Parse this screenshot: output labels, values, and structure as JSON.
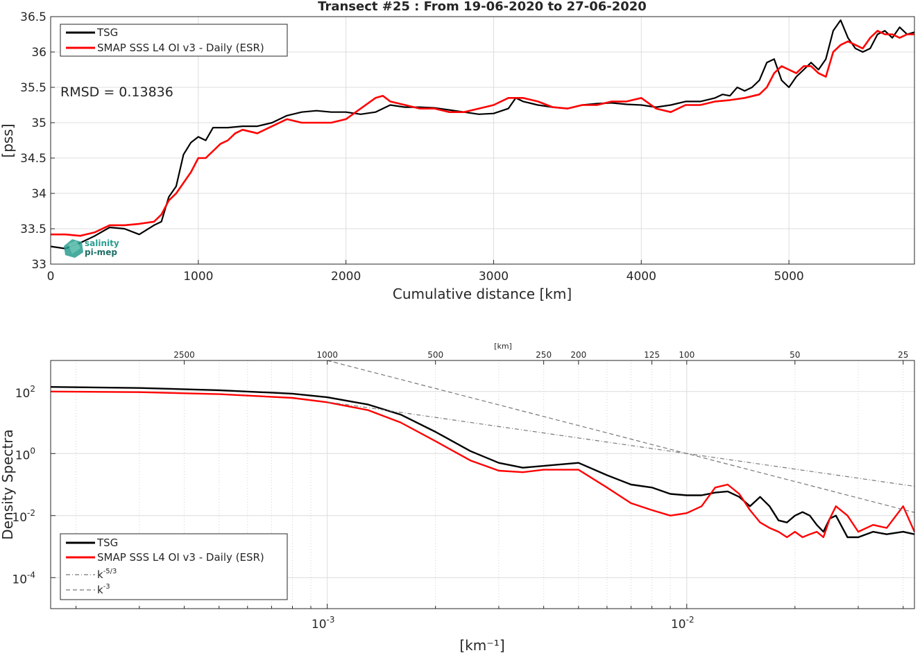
{
  "chart_data": [
    {
      "type": "line",
      "title": "Transect #25 : From 19-06-2020 to 27-06-2020",
      "xlabel": "Cumulative distance [km]",
      "ylabel": "[pss]",
      "xlim": [
        0,
        5850
      ],
      "ylim": [
        33,
        36.5
      ],
      "x_ticks": [
        "0",
        "1000",
        "2000",
        "3000",
        "4000",
        "5000"
      ],
      "y_ticks": [
        "33",
        "33.5",
        "34",
        "34.5",
        "35",
        "35.5",
        "36",
        "36.5"
      ],
      "grid": true,
      "legend_position": "top-left",
      "annotation": "RMSD = 0.13836",
      "logo_text": [
        "salinity",
        "pi-mep"
      ],
      "series": [
        {
          "name": "TSG",
          "color": "#000000",
          "x": [
            0,
            100,
            200,
            300,
            400,
            500,
            600,
            700,
            750,
            800,
            850,
            900,
            950,
            1000,
            1050,
            1100,
            1200,
            1300,
            1400,
            1500,
            1600,
            1700,
            1800,
            1900,
            2000,
            2100,
            2200,
            2300,
            2400,
            2500,
            2600,
            2700,
            2800,
            2900,
            3000,
            3100,
            3150,
            3200,
            3300,
            3400,
            3500,
            3600,
            3700,
            3800,
            3900,
            4000,
            4100,
            4200,
            4300,
            4400,
            4500,
            4550,
            4600,
            4650,
            4700,
            4750,
            4800,
            4850,
            4900,
            4950,
            5000,
            5050,
            5100,
            5150,
            5200,
            5250,
            5300,
            5350,
            5400,
            5450,
            5500,
            5550,
            5600,
            5650,
            5700,
            5750,
            5800,
            5850
          ],
          "y": [
            33.25,
            33.22,
            33.3,
            33.4,
            33.52,
            33.5,
            33.42,
            33.55,
            33.6,
            33.95,
            34.1,
            34.55,
            34.72,
            34.8,
            34.75,
            34.93,
            34.93,
            34.95,
            34.95,
            35.0,
            35.1,
            35.15,
            35.17,
            35.15,
            35.15,
            35.12,
            35.15,
            35.25,
            35.22,
            35.22,
            35.21,
            35.18,
            35.15,
            35.12,
            35.13,
            35.2,
            35.35,
            35.3,
            35.25,
            35.22,
            35.2,
            35.25,
            35.27,
            35.28,
            35.26,
            35.25,
            35.22,
            35.25,
            35.3,
            35.3,
            35.35,
            35.4,
            35.38,
            35.5,
            35.45,
            35.5,
            35.6,
            35.85,
            35.9,
            35.6,
            35.5,
            35.65,
            35.75,
            35.85,
            35.75,
            35.9,
            36.3,
            36.45,
            36.2,
            36.05,
            36.0,
            36.05,
            36.25,
            36.3,
            36.2,
            36.35,
            36.25,
            36.28
          ]
        },
        {
          "name": "SMAP SSS L4 OI v3 - Daily (ESR)",
          "color": "#ff0000",
          "x": [
            0,
            100,
            200,
            300,
            400,
            500,
            600,
            700,
            750,
            800,
            850,
            900,
            950,
            1000,
            1050,
            1100,
            1150,
            1200,
            1250,
            1300,
            1400,
            1500,
            1600,
            1700,
            1800,
            1900,
            2000,
            2100,
            2200,
            2250,
            2300,
            2400,
            2500,
            2600,
            2700,
            2800,
            2900,
            3000,
            3100,
            3200,
            3300,
            3400,
            3500,
            3600,
            3700,
            3800,
            3900,
            4000,
            4100,
            4200,
            4300,
            4400,
            4500,
            4600,
            4700,
            4800,
            4850,
            4900,
            4950,
            5000,
            5050,
            5100,
            5150,
            5200,
            5250,
            5300,
            5350,
            5400,
            5450,
            5500,
            5550,
            5600,
            5650,
            5700,
            5750,
            5800,
            5850
          ],
          "y": [
            33.42,
            33.42,
            33.4,
            33.45,
            33.55,
            33.55,
            33.57,
            33.6,
            33.7,
            33.9,
            34.0,
            34.15,
            34.3,
            34.5,
            34.5,
            34.6,
            34.7,
            34.75,
            34.85,
            34.9,
            34.85,
            34.95,
            35.05,
            35.0,
            35.0,
            35.0,
            35.05,
            35.2,
            35.35,
            35.38,
            35.3,
            35.25,
            35.2,
            35.2,
            35.15,
            35.15,
            35.2,
            35.25,
            35.35,
            35.35,
            35.3,
            35.22,
            35.2,
            35.25,
            35.25,
            35.3,
            35.3,
            35.35,
            35.2,
            35.15,
            35.25,
            35.25,
            35.3,
            35.32,
            35.35,
            35.4,
            35.5,
            35.7,
            35.8,
            35.75,
            35.7,
            35.8,
            35.8,
            35.7,
            35.65,
            36.0,
            36.1,
            36.15,
            36.1,
            36.05,
            36.2,
            36.3,
            36.25,
            36.25,
            36.2,
            36.25,
            36.25
          ]
        }
      ]
    },
    {
      "type": "line",
      "title": "",
      "xlabel": "[km⁻¹]",
      "ylabel": "Density Spectra",
      "x_scale": "log",
      "y_scale": "log",
      "xlim": [
        0.00017,
        0.043
      ],
      "ylim": [
        1e-05,
        1000
      ],
      "x_ticks": [
        {
          "value": 0.001,
          "base": "10",
          "exp": "-3"
        },
        {
          "value": 0.01,
          "base": "10",
          "exp": "-2"
        }
      ],
      "y_ticks": [
        {
          "value": 0.0001,
          "base": "10",
          "exp": "-4"
        },
        {
          "value": 0.01,
          "base": "10",
          "exp": "-2"
        },
        {
          "value": 1,
          "base": "10",
          "exp": "0"
        },
        {
          "value": 100,
          "base": "10",
          "exp": "2"
        }
      ],
      "top_axis_label": "[km]",
      "top_ticks": [
        "2500",
        "1000",
        "500",
        "250",
        "200",
        "125",
        "100",
        "50",
        "25"
      ],
      "grid": true,
      "legend_position": "bottom-left",
      "series": [
        {
          "name": "TSG",
          "color": "#000000",
          "x": [
            0.00017,
            0.0003,
            0.0005,
            0.0008,
            0.001,
            0.0013,
            0.0016,
            0.002,
            0.0025,
            0.003,
            0.0035,
            0.004,
            0.005,
            0.006,
            0.007,
            0.008,
            0.009,
            0.01,
            0.011,
            0.012,
            0.013,
            0.014,
            0.015,
            0.016,
            0.017,
            0.018,
            0.019,
            0.02,
            0.021,
            0.022,
            0.023,
            0.024,
            0.025,
            0.026,
            0.028,
            0.03,
            0.033,
            0.036,
            0.04,
            0.043
          ],
          "y": [
            140,
            130,
            110,
            85,
            65,
            38,
            18,
            5.0,
            1.2,
            0.5,
            0.35,
            0.4,
            0.5,
            0.2,
            0.1,
            0.08,
            0.05,
            0.045,
            0.045,
            0.055,
            0.06,
            0.04,
            0.02,
            0.04,
            0.02,
            0.007,
            0.006,
            0.01,
            0.013,
            0.01,
            0.005,
            0.003,
            0.008,
            0.01,
            0.002,
            0.002,
            0.003,
            0.0025,
            0.003,
            0.0025
          ]
        },
        {
          "name": "SMAP SSS L4 OI v3 - Daily (ESR)",
          "color": "#ff0000",
          "x": [
            0.00017,
            0.0003,
            0.0005,
            0.0008,
            0.001,
            0.0013,
            0.0016,
            0.002,
            0.0025,
            0.003,
            0.0035,
            0.004,
            0.005,
            0.006,
            0.007,
            0.008,
            0.009,
            0.01,
            0.011,
            0.012,
            0.013,
            0.014,
            0.015,
            0.016,
            0.017,
            0.018,
            0.019,
            0.02,
            0.021,
            0.022,
            0.023,
            0.024,
            0.025,
            0.026,
            0.028,
            0.03,
            0.033,
            0.036,
            0.04,
            0.043
          ],
          "y": [
            100,
            95,
            82,
            62,
            45,
            25,
            10,
            2.5,
            0.6,
            0.28,
            0.25,
            0.3,
            0.3,
            0.08,
            0.025,
            0.015,
            0.01,
            0.012,
            0.02,
            0.08,
            0.1,
            0.05,
            0.015,
            0.006,
            0.004,
            0.003,
            0.002,
            0.003,
            0.002,
            0.0025,
            0.003,
            0.002,
            0.008,
            0.02,
            0.01,
            0.003,
            0.005,
            0.004,
            0.02,
            0.003
          ]
        },
        {
          "name": "k^-5/3",
          "label_base": "k",
          "label_exp": "-5/3",
          "color": "#777777",
          "dash": "dashdot",
          "x": [
            0.001,
            0.043
          ],
          "y": [
            46.4,
            0.088
          ]
        },
        {
          "name": "k^-3",
          "label_base": "k",
          "label_exp": "-3",
          "color": "#777777",
          "dash": "dashed",
          "x": [
            0.001,
            0.043
          ],
          "y": [
            1000,
            0.0126
          ]
        }
      ]
    }
  ]
}
